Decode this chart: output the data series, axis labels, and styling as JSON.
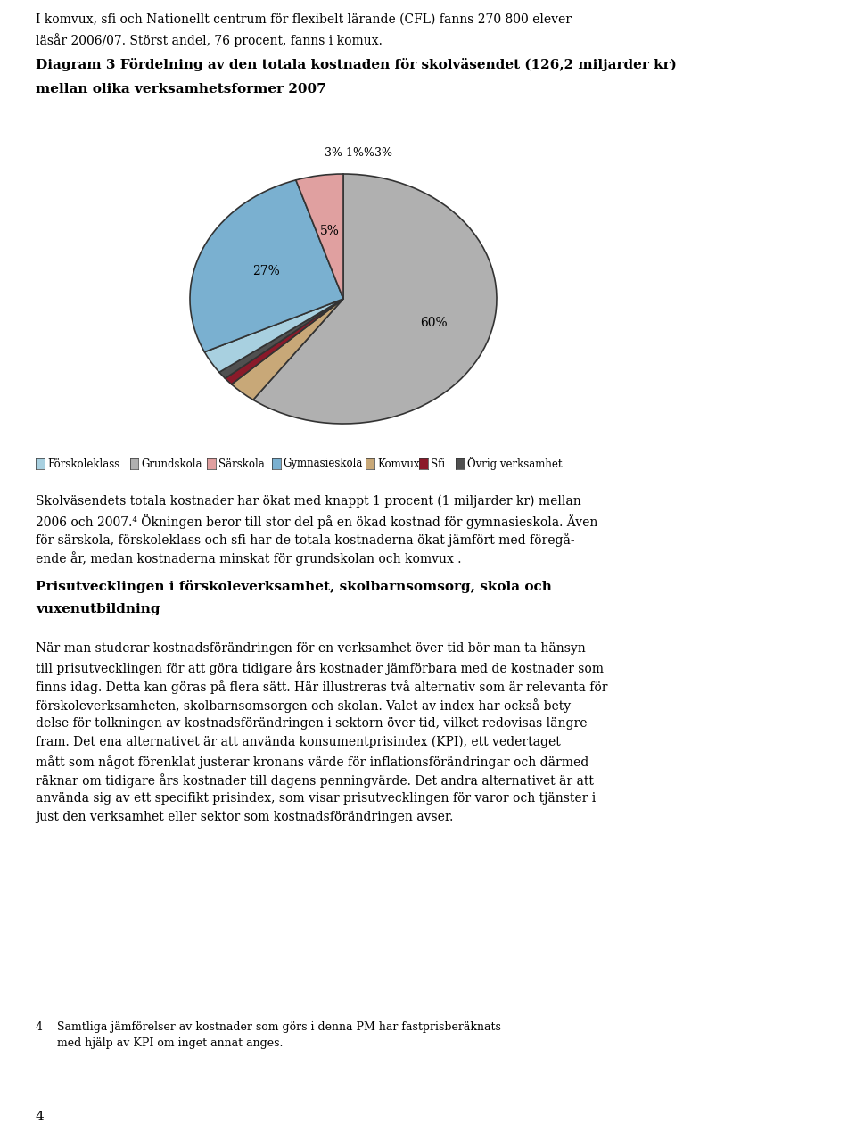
{
  "pie_values": [
    60,
    3,
    1,
    1,
    3,
    27,
    5
  ],
  "pie_colors": [
    "#b0b0b0",
    "#c8a878",
    "#8b1a2a",
    "#505050",
    "#a8d0e0",
    "#7ab0d0",
    "#e0a0a0"
  ],
  "pie_pcts": [
    "60%",
    "3%",
    "1%",
    "",
    "3%",
    "27%",
    "5%"
  ],
  "top_label": "3% 1%%3%",
  "legend_order": [
    "Förskoleklass",
    "Grundskola",
    "Särskola",
    "Gymnasieskola",
    "Komvux",
    "Sfi",
    "Övrig verksamhet"
  ],
  "legend_colors_list": [
    "#a8d0e0",
    "#b0b0b0",
    "#e0a0a0",
    "#7ab0d0",
    "#c8a878",
    "#8b1a2a",
    "#505050"
  ],
  "background_color": "#ffffff",
  "text_color": "#000000",
  "footer_line_color": "#8b1a2a",
  "intro_lines": [
    "I komvux, sfi och Nationellt centrum för flexibelt lärande (CFL) fanns 270 800 elever",
    "läsår 2006/07. Störst andel, 76 procent, fanns i komux."
  ],
  "diagram_title_lines": [
    "Diagram 3 Fördelning av den totala kostnaden för skolväsendet (126,2 miljarder kr)",
    "mellan olika verksamhetsformer 2007"
  ],
  "body_para1_lines": [
    "Skolväsendets totala kostnader har ökat med knappt 1 procent (1 miljarder kr) mellan",
    "2006 och 2007.⁴ Ökningen beror till stor del på en ökad kostnad för gymnasieskola. Även",
    "för särskola, förskoleklass och sfi har de totala kostnaderna ökat jämfört med föregå-",
    "ende år, medan kostnaderna minskat för grundskolan och komvux ."
  ],
  "section_heading_lines": [
    "Prisutvecklingen i förskoleverksamhet, skolbarnsomsorg, skola och",
    "vuxenutbildning"
  ],
  "body_para2_lines": [
    "När man studerar kostnadsförändringen för en verksamhet över tid bör man ta hänsyn",
    "till prisutvecklingen för att göra tidigare års kostnader jämförbara med de kostnader som",
    "finns idag. Detta kan göras på flera sätt. Här illustreras två alternativ som är relevanta för",
    "förskoleverksamheten, skolbarnsomsorgen och skolan. Valet av index har också bety-",
    "delse för tolkningen av kostnadsförändringen i sektorn över tid, vilket redovisas längre",
    "fram. Det ena alternativet är att använda konsumentprisindex (KPI), ett vedertaget",
    "mått som något förenklat justerar kronans värde för inflationsförändringar och därmed",
    "räknar om tidigare års kostnader till dagens penningvärde. Det andra alternativet är att",
    "använda sig av ett specifikt prisindex, som visar prisutvecklingen för varor och tjänster i",
    "just den verksamhet eller sektor som kostnadsförändringen avser."
  ],
  "footnote_lines": [
    "4    Samtliga jämförelser av kostnader som görs i denna PM har fastprisberäknats",
    "      med hjälp av KPI om inget annat anges."
  ],
  "page_number": "4"
}
